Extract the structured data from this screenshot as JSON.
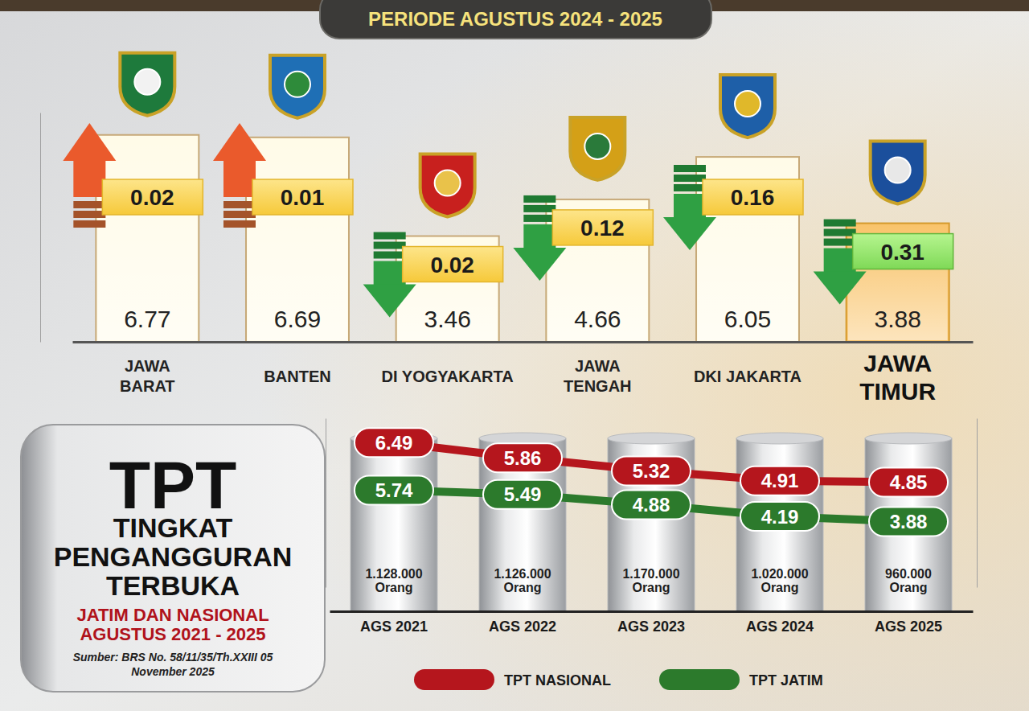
{
  "chart_data": [
    {
      "type": "bar",
      "title": "PERIODE AGUSTUS 2024 - 2025",
      "categories": [
        "JAWA BARAT",
        "BANTEN",
        "DI YOGYAKARTA",
        "JAWA TENGAH",
        "DKI JAKARTA",
        "JAWA TIMUR"
      ],
      "values": [
        6.77,
        6.69,
        3.46,
        4.66,
        6.05,
        3.88
      ],
      "colors": [
        "#fffbe8",
        "#fffbe8",
        "#fffbe8",
        "#fffbe8",
        "#fffbe8",
        "#f9c46b"
      ],
      "change": [
        0.02,
        0.01,
        0.02,
        0.12,
        0.16,
        0.31
      ],
      "direction": [
        "up",
        "up",
        "down",
        "down",
        "down",
        "down"
      ],
      "ylim": [
        0,
        7.5
      ],
      "tick_labels": "x",
      "data_labels": true
    },
    {
      "type": "line",
      "title": "TPT",
      "subtitle": "TINGKAT PENGANGGURAN TERBUKA",
      "caption": "JATIM DAN NASIONAL AGUSTUS 2021 - 2025",
      "source": "Sumber: BRS No. 58/11/35/Th.XXIII 05 November 2025",
      "categories": [
        "AGS 2021",
        "AGS 2022",
        "AGS 2023",
        "AGS 2024",
        "AGS 2025"
      ],
      "count_labels": [
        "1.128.000 Orang",
        "1.126.000 Orang",
        "1.170.000 Orang",
        "1.020.000 Orang",
        "960.000 Orang"
      ],
      "series": [
        {
          "name": "TPT NASIONAL",
          "color": "#b5161d",
          "values": [
            6.49,
            5.86,
            5.32,
            4.91,
            4.85
          ]
        },
        {
          "name": "TPT JATIM",
          "color": "#2c7a2c",
          "axis": "y2",
          "values": [
            5.74,
            5.49,
            4.88,
            4.19,
            3.88
          ]
        }
      ],
      "ylim": [
        0.5,
        7.5
      ],
      "y2lim": [
        0,
        10
      ],
      "tick_labels": "x",
      "data_labels": true,
      "legend": "bottom"
    }
  ]
}
